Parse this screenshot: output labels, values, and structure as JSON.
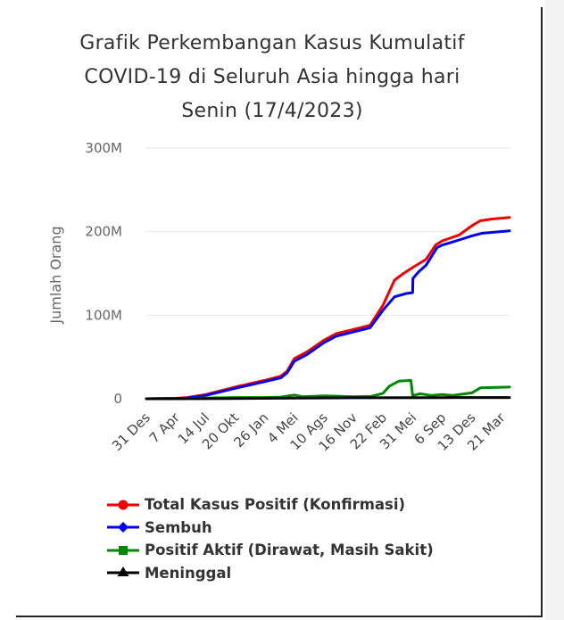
{
  "chart_data": {
    "type": "line",
    "title_lines": [
      "Grafik Perkembangan Kasus Kumulatif",
      "COVID-19 di Seluruh Asia hingga hari",
      "Senin (17/4/2023)"
    ],
    "ylabel": "Jumlah Orang",
    "ylim": [
      0,
      300000000
    ],
    "yticks": [
      {
        "value": 0,
        "label": "0"
      },
      {
        "value": 100000000,
        "label": "100M"
      },
      {
        "value": 200000000,
        "label": "200M"
      },
      {
        "value": 300000000,
        "label": "300M"
      }
    ],
    "x_range": [
      "2019-12-31",
      "2023-04-17"
    ],
    "xticks": [
      {
        "date": "2019-12-31",
        "label": "31 Des"
      },
      {
        "date": "2020-04-07",
        "label": "7 Apr"
      },
      {
        "date": "2020-07-14",
        "label": "14 Jul"
      },
      {
        "date": "2020-10-20",
        "label": "20 Okt"
      },
      {
        "date": "2021-01-26",
        "label": "26 Jan"
      },
      {
        "date": "2021-05-04",
        "label": "4 Mei"
      },
      {
        "date": "2021-08-10",
        "label": "10 Ags"
      },
      {
        "date": "2021-11-16",
        "label": "16 Nov"
      },
      {
        "date": "2022-02-22",
        "label": "22 Feb"
      },
      {
        "date": "2022-05-31",
        "label": "31 Mei"
      },
      {
        "date": "2022-09-06",
        "label": "6 Sep"
      },
      {
        "date": "2022-12-13",
        "label": "13 Des"
      },
      {
        "date": "2023-03-21",
        "label": "21 Mar"
      }
    ],
    "grid": true,
    "legend_position": "bottom",
    "series": [
      {
        "name": "Total Kasus Positif (Konfirmasi)",
        "color": "#ee0000",
        "marker": "circle",
        "points": [
          [
            "2019-12-31",
            0
          ],
          [
            "2020-04-07",
            500000
          ],
          [
            "2020-05-15",
            1500000
          ],
          [
            "2020-07-14",
            5000000
          ],
          [
            "2020-10-20",
            14000000
          ],
          [
            "2021-01-26",
            22000000
          ],
          [
            "2021-03-20",
            27000000
          ],
          [
            "2021-04-10",
            33000000
          ],
          [
            "2021-05-04",
            48000000
          ],
          [
            "2021-06-15",
            56000000
          ],
          [
            "2021-08-10",
            70000000
          ],
          [
            "2021-09-20",
            78000000
          ],
          [
            "2021-11-16",
            83000000
          ],
          [
            "2022-01-10",
            88000000
          ],
          [
            "2022-02-22",
            112000000
          ],
          [
            "2022-04-01",
            142000000
          ],
          [
            "2022-05-01",
            150000000
          ],
          [
            "2022-05-31",
            157000000
          ],
          [
            "2022-07-15",
            167000000
          ],
          [
            "2022-08-15",
            184000000
          ],
          [
            "2022-09-06",
            189000000
          ],
          [
            "2022-11-01",
            196000000
          ],
          [
            "2022-12-13",
            207000000
          ],
          [
            "2023-01-10",
            213000000
          ],
          [
            "2023-02-15",
            215000000
          ],
          [
            "2023-04-17",
            217000000
          ]
        ]
      },
      {
        "name": "Sembuh",
        "color": "#0000ee",
        "marker": "diamond",
        "points": [
          [
            "2019-12-31",
            0
          ],
          [
            "2020-04-07",
            300000
          ],
          [
            "2020-05-15",
            900000
          ],
          [
            "2020-07-14",
            4000000
          ],
          [
            "2020-10-20",
            12500000
          ],
          [
            "2021-01-26",
            20500000
          ],
          [
            "2021-03-20",
            25000000
          ],
          [
            "2021-04-10",
            31000000
          ],
          [
            "2021-05-04",
            45000000
          ],
          [
            "2021-06-15",
            53000000
          ],
          [
            "2021-08-10",
            67000000
          ],
          [
            "2021-09-20",
            75000000
          ],
          [
            "2021-11-16",
            80000000
          ],
          [
            "2022-01-10",
            85000000
          ],
          [
            "2022-02-22",
            106000000
          ],
          [
            "2022-04-01",
            122000000
          ],
          [
            "2022-05-10",
            126000000
          ],
          [
            "2022-05-31",
            127000000
          ],
          [
            "2022-06-01",
            144000000
          ],
          [
            "2022-06-20",
            152000000
          ],
          [
            "2022-07-15",
            160000000
          ],
          [
            "2022-08-20",
            181000000
          ],
          [
            "2022-09-06",
            184000000
          ],
          [
            "2022-11-01",
            190000000
          ],
          [
            "2022-12-13",
            195000000
          ],
          [
            "2023-01-15",
            198000000
          ],
          [
            "2023-04-17",
            201000000
          ]
        ]
      },
      {
        "name": "Positif Aktif (Dirawat, Masih Sakit)",
        "color": "#008800",
        "marker": "square",
        "points": [
          [
            "2019-12-31",
            0
          ],
          [
            "2020-04-07",
            200000
          ],
          [
            "2020-07-14",
            1000000
          ],
          [
            "2020-10-20",
            1500000
          ],
          [
            "2021-01-26",
            1500000
          ],
          [
            "2021-03-20",
            2000000
          ],
          [
            "2021-05-04",
            4500000
          ],
          [
            "2021-06-01",
            2500000
          ],
          [
            "2021-08-10",
            3500000
          ],
          [
            "2021-11-16",
            2500000
          ],
          [
            "2022-01-15",
            3000000
          ],
          [
            "2022-02-22",
            6500000
          ],
          [
            "2022-03-15",
            15000000
          ],
          [
            "2022-04-15",
            21000000
          ],
          [
            "2022-05-25",
            22000000
          ],
          [
            "2022-05-31",
            4000000
          ],
          [
            "2022-06-25",
            6000000
          ],
          [
            "2022-08-01",
            4000000
          ],
          [
            "2022-09-06",
            5000000
          ],
          [
            "2022-10-10",
            4000000
          ],
          [
            "2022-12-13",
            7000000
          ],
          [
            "2023-01-10",
            13000000
          ],
          [
            "2023-02-15",
            13500000
          ],
          [
            "2023-04-17",
            14000000
          ]
        ]
      },
      {
        "name": "Meninggal",
        "color": "#000000",
        "marker": "triangle",
        "points": [
          [
            "2019-12-31",
            0
          ],
          [
            "2020-07-14",
            100000
          ],
          [
            "2021-05-04",
            700000
          ],
          [
            "2021-11-16",
            1200000
          ],
          [
            "2022-09-06",
            1400000
          ],
          [
            "2023-04-17",
            1500000
          ]
        ]
      }
    ]
  }
}
